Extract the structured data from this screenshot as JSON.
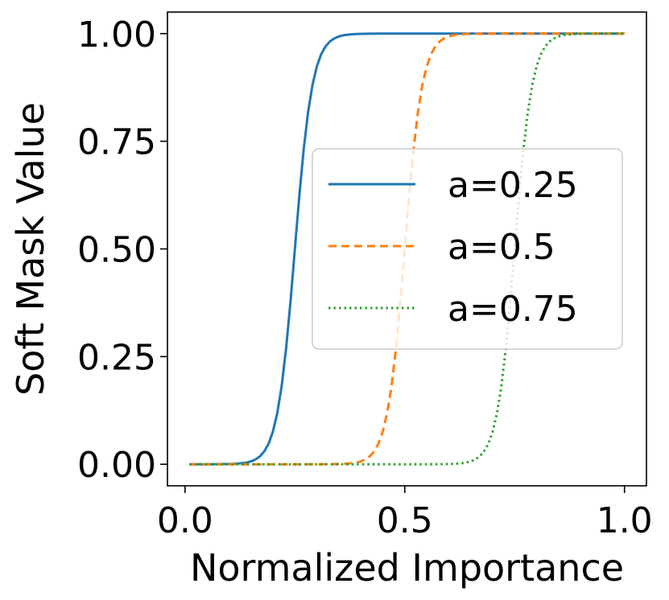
{
  "chart_data": {
    "type": "line",
    "title": "",
    "xlabel": "Normalized Importance",
    "ylabel": "Soft Mask Value",
    "xlim": [
      -0.04,
      1.05
    ],
    "ylim": [
      -0.05,
      1.05
    ],
    "xticks": [
      0.0,
      0.5,
      1.0
    ],
    "xtick_labels": [
      "0.0",
      "0.5",
      "1.0"
    ],
    "yticks": [
      0.0,
      0.25,
      0.5,
      0.75,
      1.0
    ],
    "ytick_labels": [
      "0.00",
      "0.25",
      "0.50",
      "0.75",
      "1.00"
    ],
    "grid": false,
    "legend_position": "center-right",
    "x_range": [
      0.01,
      1.0
    ],
    "steepness": 50,
    "series": [
      {
        "name": "a=0.25",
        "a": 0.25,
        "color": "#1f77b4",
        "style": "solid"
      },
      {
        "name": "a=0.5",
        "a": 0.5,
        "color": "#ff7f0e",
        "style": "dashed"
      },
      {
        "name": "a=0.75",
        "a": 0.75,
        "color": "#2ca02c",
        "style": "dotted"
      }
    ]
  }
}
